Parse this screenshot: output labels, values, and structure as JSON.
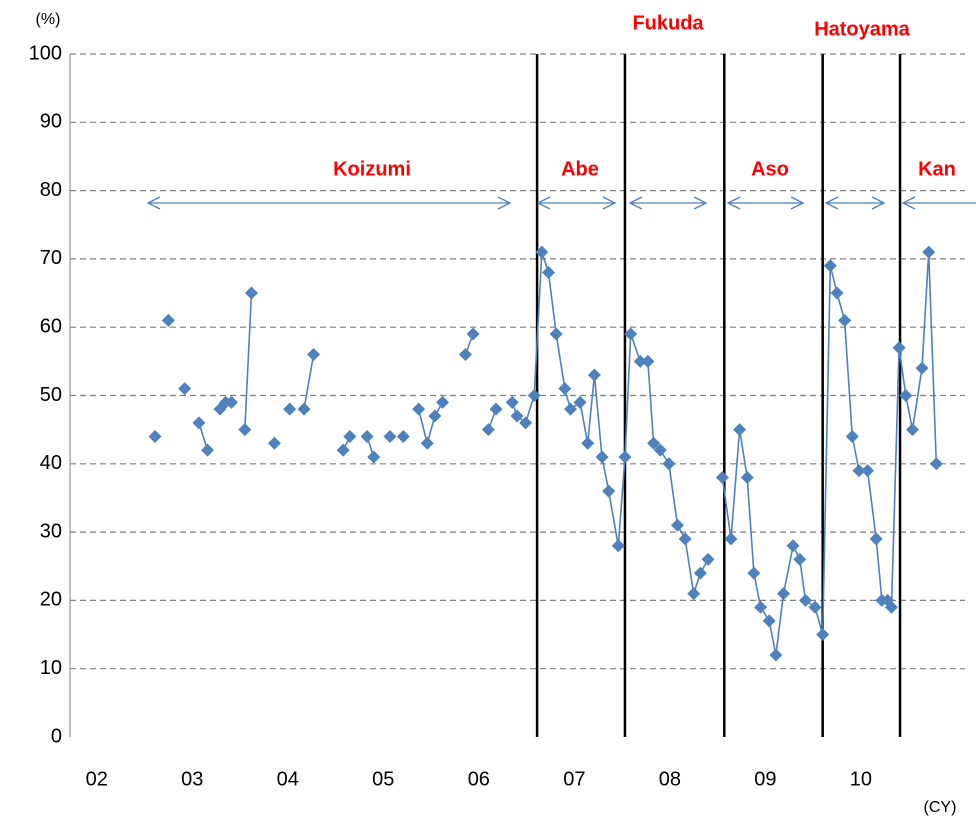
{
  "chart_data": {
    "type": "line",
    "y_unit": "(%)",
    "x_unit": "(CY)",
    "xlim": [
      2001.72,
      2011.09
    ],
    "ylim": [
      0,
      100
    ],
    "yticks": [
      0,
      10,
      20,
      30,
      40,
      50,
      60,
      70,
      80,
      90,
      100
    ],
    "xticks": [
      {
        "value": 2002,
        "label": "02"
      },
      {
        "value": 2003,
        "label": "03"
      },
      {
        "value": 2004,
        "label": "04"
      },
      {
        "value": 2005,
        "label": "05"
      },
      {
        "value": 2006,
        "label": "06"
      },
      {
        "value": 2007,
        "label": "07"
      },
      {
        "value": 2008,
        "label": "08"
      },
      {
        "value": 2009,
        "label": "09"
      },
      {
        "value": 2010,
        "label": "10"
      }
    ],
    "grid": true,
    "color": "#4f81bd",
    "boundaries": [
      2006.61,
      2007.53,
      2008.57,
      2009.6,
      2010.41
    ],
    "annotations": [
      "Koizumi",
      "Abe",
      "Fukuda",
      "Aso",
      "Hatoyama",
      "Kan"
    ],
    "x": [
      2002.61,
      null,
      2002.75,
      null,
      2002.92,
      null,
      2003.07,
      2003.16,
      null,
      2003.29,
      2003.35,
      2003.41,
      null,
      2003.55,
      2003.62,
      null,
      2003.86,
      null,
      2004.02,
      null,
      2004.17,
      2004.27,
      null,
      2004.58,
      2004.65,
      null,
      2004.83,
      2004.9,
      null,
      2005.07,
      null,
      2005.21,
      null,
      2005.37,
      2005.46,
      2005.54,
      2005.62,
      null,
      2005.86,
      2005.94,
      null,
      2006.1,
      2006.18,
      null,
      2006.35,
      2006.4,
      2006.49,
      2006.58,
      2006.66,
      2006.73,
      2006.81,
      2006.9,
      2006.96,
      2007.06,
      2007.14,
      2007.21,
      2007.29,
      2007.36,
      2007.46,
      2007.53,
      2007.59,
      2007.69,
      2007.77,
      2007.83,
      2007.9,
      2007.99,
      2008.08,
      2008.16,
      2008.25,
      2008.32,
      2008.4,
      null,
      2008.55,
      2008.64,
      2008.73,
      2008.81,
      2008.88,
      2008.95,
      2009.04,
      2009.11,
      2009.19,
      2009.29,
      2009.36,
      2009.42,
      2009.52,
      2009.6,
      2009.68,
      2009.75,
      2009.83,
      2009.91,
      2009.98,
      2010.07,
      2010.16,
      2010.22,
      2010.28,
      2010.32,
      2010.4,
      2010.47,
      2010.54,
      2010.64,
      2010.71,
      2010.79
    ],
    "values": [
      44,
      null,
      61,
      null,
      51,
      null,
      46,
      42,
      null,
      48,
      49,
      49,
      null,
      45,
      65,
      null,
      43,
      null,
      48,
      null,
      48,
      56,
      null,
      42,
      44,
      null,
      44,
      41,
      null,
      44,
      null,
      44,
      null,
      48,
      43,
      47,
      49,
      null,
      56,
      59,
      null,
      45,
      48,
      null,
      49,
      47,
      46,
      50,
      71,
      68,
      59,
      51,
      48,
      49,
      43,
      53,
      41,
      36,
      28,
      41,
      59,
      55,
      55,
      43,
      42,
      40,
      31,
      29,
      21,
      24,
      26,
      null,
      38,
      29,
      45,
      38,
      24,
      19,
      17,
      12,
      21,
      28,
      26,
      20,
      19,
      15,
      69,
      65,
      61,
      44,
      39,
      39,
      29,
      20,
      20,
      19,
      57,
      50,
      45,
      54,
      71,
      40
    ]
  }
}
